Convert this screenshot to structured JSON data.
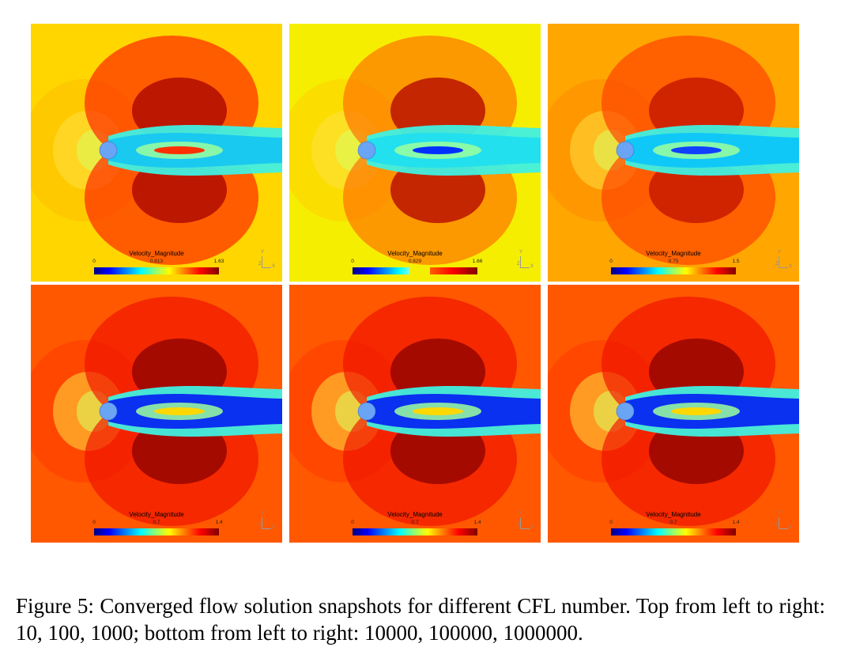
{
  "figure": {
    "caption": "Figure 5: Converged flow solution snapshots for different CFL number. Top from left to right: 10, 100, 1000; bottom from left to right: 10000, 100000, 1000000.",
    "legend_title": "Velocity_Magnitude",
    "axis_labels": {
      "y": "Y",
      "z": "Z",
      "x": "X"
    },
    "panels": [
      {
        "cfl": 10,
        "ticks": [
          "0",
          "0.813",
          "1.63"
        ],
        "bg": "#ffd600",
        "tint": "#ffbf00",
        "hi": "#ff1a00",
        "dark": "#a50000",
        "wake": "#19c9f0",
        "core": "#ff3000",
        "gap": false
      },
      {
        "cfl": 100,
        "ticks": [
          "0",
          "0.829",
          "1.66"
        ],
        "bg": "#f6ee00",
        "tint": "#ffd000",
        "hi": "#ff6a00",
        "dark": "#b00000",
        "wake": "#22e0ee",
        "core": "#0030ff",
        "gap": true
      },
      {
        "cfl": 1000,
        "ticks": [
          "0",
          "0.75",
          "1.5"
        ],
        "bg": "#ffa600",
        "tint": "#ff8a00",
        "hi": "#ff3a00",
        "dark": "#c01000",
        "wake": "#10c8f8",
        "core": "#1040ff",
        "gap": false
      },
      {
        "cfl": 10000,
        "ticks": [
          "0",
          "0.7",
          "1.4"
        ],
        "bg": "#ff5800",
        "tint": "#ff3a00",
        "hi": "#f01000",
        "dark": "#8a0000",
        "wake": "#0a30f0",
        "core": "#ffd800",
        "gap": false
      },
      {
        "cfl": 100000,
        "ticks": [
          "0",
          "0.7",
          "1.4"
        ],
        "bg": "#ff5800",
        "tint": "#ff3a00",
        "hi": "#f01000",
        "dark": "#8a0000",
        "wake": "#0a30f0",
        "core": "#ffd800",
        "gap": false
      },
      {
        "cfl": 1000000,
        "ticks": [
          "0",
          "0.7",
          "1.4"
        ],
        "bg": "#ff5800",
        "tint": "#ff3a00",
        "hi": "#f01000",
        "dark": "#8a0000",
        "wake": "#0a30f0",
        "core": "#ffd800",
        "gap": false
      }
    ],
    "cylinder_color": "#6aa4f4"
  }
}
